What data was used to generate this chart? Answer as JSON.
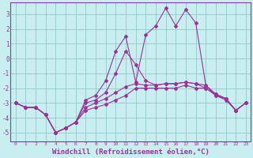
{
  "bg_color": "#c8eef0",
  "line_color": "#993399",
  "grid_color": "#99cccc",
  "xlabel": "Windchill (Refroidissement éolien,°C)",
  "xlabel_fontsize": 6.5,
  "ytick_vals": [
    -5,
    -4,
    -3,
    -2,
    -1,
    0,
    1,
    2,
    3
  ],
  "ytick_labels": [
    "-5",
    "-4",
    "-3",
    "-2",
    "-1",
    "0",
    "1",
    "2",
    "3"
  ],
  "xtick_vals": [
    0,
    1,
    2,
    3,
    4,
    5,
    6,
    7,
    8,
    9,
    10,
    11,
    12,
    13,
    14,
    15,
    16,
    17,
    18,
    19,
    20,
    21,
    22,
    23
  ],
  "line1_x": [
    0,
    1,
    2,
    3,
    4,
    5,
    6,
    7,
    8,
    9,
    10,
    11,
    12,
    13,
    14,
    15,
    16,
    17,
    18,
    19,
    20,
    21,
    22,
    23
  ],
  "line1_y": [
    -3.0,
    -3.3,
    -3.3,
    -3.8,
    -5.0,
    -4.7,
    -4.3,
    -3.5,
    -3.3,
    -3.1,
    -2.8,
    -2.5,
    -2.0,
    -2.0,
    -2.0,
    -2.0,
    -2.0,
    -1.8,
    -2.0,
    -2.0,
    -2.5,
    -2.8,
    -3.5,
    -3.0
  ],
  "line2_x": [
    0,
    1,
    2,
    3,
    4,
    5,
    6,
    7,
    8,
    9,
    10,
    11,
    12,
    13,
    14,
    15,
    16,
    17,
    18,
    19,
    20,
    21,
    22,
    23
  ],
  "line2_y": [
    -3.0,
    -3.3,
    -3.3,
    -3.8,
    -5.0,
    -4.7,
    -4.3,
    -3.3,
    -3.0,
    -2.7,
    -2.3,
    -1.9,
    -1.7,
    -1.8,
    -1.8,
    -1.7,
    -1.7,
    -1.6,
    -1.7,
    -1.8,
    -2.4,
    -2.7,
    -3.5,
    -3.0
  ],
  "line3_x": [
    0,
    1,
    2,
    3,
    4,
    5,
    6,
    7,
    8,
    9,
    10,
    11,
    12,
    13,
    14,
    15,
    16,
    17,
    18,
    19,
    20,
    21,
    22,
    23
  ],
  "line3_y": [
    -3.0,
    -3.3,
    -3.3,
    -3.8,
    -5.0,
    -4.7,
    -4.3,
    -3.0,
    -2.8,
    -2.3,
    -1.0,
    0.5,
    -0.4,
    -1.5,
    -1.8,
    -1.7,
    -1.7,
    -1.6,
    -1.7,
    -2.0,
    -2.4,
    -2.7,
    -3.5,
    -3.0
  ],
  "line4_x": [
    0,
    1,
    2,
    3,
    4,
    5,
    6,
    7,
    8,
    9,
    10,
    11,
    12,
    13,
    14,
    15,
    16,
    17,
    18,
    19,
    20,
    21,
    22,
    23
  ],
  "line4_y": [
    -3.0,
    -3.3,
    -3.3,
    -3.8,
    -5.0,
    -4.7,
    -4.3,
    -2.8,
    -2.5,
    -1.5,
    0.5,
    1.5,
    -1.6,
    1.6,
    2.2,
    3.4,
    2.2,
    3.3,
    2.4,
    -1.8,
    -2.5,
    -2.7,
    -3.5,
    -3.0
  ],
  "ylim": [
    -5.6,
    3.8
  ],
  "xlim": [
    -0.5,
    23.5
  ]
}
